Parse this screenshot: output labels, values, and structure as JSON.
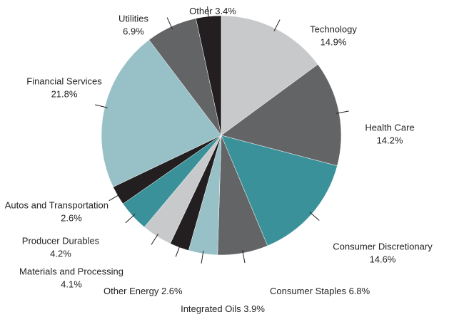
{
  "chart_data": {
    "type": "pie",
    "categories": [
      "Technology",
      "Health Care",
      "Consumer Discretionary",
      "Consumer Staples",
      "Integrated Oils",
      "Other Energy",
      "Materials and Processing",
      "Producer Durables",
      "Autos and Transportation",
      "Financial Services",
      "Utilities",
      "Other"
    ],
    "values": [
      14.9,
      14.2,
      14.6,
      6.8,
      3.9,
      2.6,
      4.1,
      4.2,
      2.6,
      21.8,
      6.9,
      3.4
    ],
    "value_labels": [
      "14.9%",
      "14.2%",
      "14.6%",
      "6.8%",
      "3.9%",
      "2.6%",
      "4.1%",
      "4.2%",
      "2.6%",
      "21.8%",
      "6.9%",
      "3.4%"
    ],
    "colors": [
      "#c8c9cb",
      "#636466",
      "#3a9199",
      "#636466",
      "#97c1c6",
      "#231f20",
      "#c8c9cb",
      "#3a9199",
      "#231f20",
      "#97c1c6",
      "#636466",
      "#231f20"
    ]
  }
}
